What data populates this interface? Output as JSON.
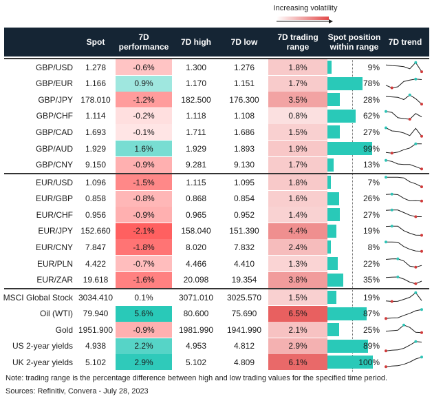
{
  "volatility_label": "Increasing volatility",
  "columns": {
    "spot": "Spot",
    "perf": "7D\nperformance",
    "high": "7D high",
    "low": "7D low",
    "range": "7D trading\nrange",
    "position": "Spot position\nwithin range",
    "trend": "7D trend"
  },
  "colors": {
    "header_bg": "#152534",
    "bar": "#29c9b8",
    "trend_line": "#1a1a1a",
    "trend_start": "#d13b3b",
    "trend_end": "#2ec4b6"
  },
  "chart_data": {
    "type": "table",
    "groups": [
      {
        "rows": [
          {
            "name": "GBP/USD",
            "spot": "1.278",
            "perf": "-0.6%",
            "high": "1.300",
            "low": "1.276",
            "range": "1.8%",
            "position": "9%",
            "pos": 9,
            "perf_value": -0.6,
            "range_value": 1.8
          },
          {
            "name": "GBP/EUR",
            "spot": "1.166",
            "perf": "0.9%",
            "high": "1.170",
            "low": "1.151",
            "range": "1.7%",
            "position": "78%",
            "pos": 78,
            "perf_value": 0.9,
            "range_value": 1.7
          },
          {
            "name": "GBP/JPY",
            "spot": "178.010",
            "perf": "-1.2%",
            "high": "182.500",
            "low": "176.300",
            "range": "3.5%",
            "position": "28%",
            "pos": 28,
            "perf_value": -1.2,
            "range_value": 3.5
          },
          {
            "name": "GBP/CHF",
            "spot": "1.114",
            "perf": "-0.2%",
            "high": "1.118",
            "low": "1.108",
            "range": "0.8%",
            "position": "62%",
            "pos": 62,
            "perf_value": -0.2,
            "range_value": 0.8
          },
          {
            "name": "GBP/CAD",
            "spot": "1.693",
            "perf": "-0.1%",
            "high": "1.711",
            "low": "1.686",
            "range": "1.5%",
            "position": "27%",
            "pos": 27,
            "perf_value": -0.1,
            "range_value": 1.5
          },
          {
            "name": "GBP/AUD",
            "spot": "1.929",
            "perf": "1.6%",
            "high": "1.929",
            "low": "1.893",
            "range": "1.9%",
            "position": "99%",
            "pos": 99,
            "perf_value": 1.6,
            "range_value": 1.9
          },
          {
            "name": "GBP/CNY",
            "spot": "9.150",
            "perf": "-0.9%",
            "high": "9.281",
            "low": "9.130",
            "range": "1.7%",
            "position": "13%",
            "pos": 13,
            "perf_value": -0.9,
            "range_value": 1.7
          }
        ]
      },
      {
        "rows": [
          {
            "name": "EUR/USD",
            "spot": "1.096",
            "perf": "-1.5%",
            "high": "1.115",
            "low": "1.095",
            "range": "1.8%",
            "position": "7%",
            "pos": 7,
            "perf_value": -1.5,
            "range_value": 1.8
          },
          {
            "name": "EUR/GBP",
            "spot": "0.858",
            "perf": "-0.8%",
            "high": "0.868",
            "low": "0.854",
            "range": "1.6%",
            "position": "26%",
            "pos": 26,
            "perf_value": -0.8,
            "range_value": 1.6
          },
          {
            "name": "EUR/CHF",
            "spot": "0.956",
            "perf": "-0.9%",
            "high": "0.965",
            "low": "0.952",
            "range": "1.4%",
            "position": "27%",
            "pos": 27,
            "perf_value": -0.9,
            "range_value": 1.4
          },
          {
            "name": "EUR/JPY",
            "spot": "152.660",
            "perf": "-2.1%",
            "high": "158.040",
            "low": "151.390",
            "range": "4.4%",
            "position": "19%",
            "pos": 19,
            "perf_value": -2.1,
            "range_value": 4.4
          },
          {
            "name": "EUR/CNY",
            "spot": "7.847",
            "perf": "-1.8%",
            "high": "8.020",
            "low": "7.832",
            "range": "2.4%",
            "position": "8%",
            "pos": 8,
            "perf_value": -1.8,
            "range_value": 2.4
          },
          {
            "name": "EUR/PLN",
            "spot": "4.422",
            "perf": "-0.7%",
            "high": "4.466",
            "low": "4.410",
            "range": "1.3%",
            "position": "22%",
            "pos": 22,
            "perf_value": -0.7,
            "range_value": 1.3
          },
          {
            "name": "EUR/ZAR",
            "spot": "19.618",
            "perf": "-1.6%",
            "high": "20.098",
            "low": "19.354",
            "range": "3.8%",
            "position": "35%",
            "pos": 35,
            "perf_value": -1.6,
            "range_value": 3.8
          }
        ]
      },
      {
        "rows": [
          {
            "name": "MSCI Global Stock",
            "spot": "3034.410",
            "perf": "0.1%",
            "high": "3071.010",
            "low": "3025.570",
            "range": "1.5%",
            "position": "19%",
            "pos": 19,
            "perf_value": 0.1,
            "range_value": 1.5
          },
          {
            "name": "Oil (WTI)",
            "spot": "79.940",
            "perf": "5.6%",
            "high": "80.600",
            "low": "75.690",
            "range": "6.5%",
            "position": "87%",
            "pos": 87,
            "perf_value": 5.6,
            "range_value": 6.5
          },
          {
            "name": "Gold",
            "spot": "1951.900",
            "perf": "-0.9%",
            "high": "1981.990",
            "low": "1941.990",
            "range": "2.1%",
            "position": "25%",
            "pos": 25,
            "perf_value": -0.9,
            "range_value": 2.1
          },
          {
            "name": "US 2-year yields",
            "spot": "4.938",
            "perf": "2.2%",
            "high": "4.953",
            "low": "4.812",
            "range": "2.9%",
            "position": "89%",
            "pos": 89,
            "perf_value": 2.2,
            "range_value": 2.9
          },
          {
            "name": "UK 2-year yields",
            "spot": "5.102",
            "perf": "2.9%",
            "high": "5.102",
            "low": "4.809",
            "range": "6.1%",
            "position": "100%",
            "pos": 100,
            "perf_value": 2.9,
            "range_value": 6.1
          }
        ]
      }
    ],
    "trends": [
      [
        0.72,
        0.65,
        0.62,
        0.55,
        0.35,
        0.95,
        0.06
      ],
      [
        0.35,
        0.1,
        0.2,
        0.72,
        0.85,
        0.95,
        0.9
      ],
      [
        0.8,
        0.76,
        0.72,
        0.5,
        0.95,
        0.58,
        0.06
      ],
      [
        0.95,
        0.86,
        0.35,
        0.25,
        0.2,
        0.75,
        0.42
      ],
      [
        0.9,
        0.6,
        0.55,
        0.4,
        0.15,
        0.85,
        0.08
      ],
      [
        0.12,
        0.05,
        0.15,
        0.38,
        0.55,
        0.95,
        0.95
      ],
      [
        0.95,
        0.85,
        0.6,
        0.55,
        0.55,
        0.35,
        0.12
      ],
      [
        0.98,
        0.98,
        0.98,
        0.92,
        0.55,
        0.35,
        0.06
      ],
      [
        0.92,
        0.95,
        0.9,
        0.55,
        0.3,
        0.32,
        0.28
      ],
      [
        0.92,
        0.95,
        0.95,
        0.7,
        0.45,
        0.3,
        0.3
      ],
      [
        0.96,
        0.98,
        0.98,
        0.55,
        0.3,
        0.12,
        0.1
      ],
      [
        0.98,
        0.98,
        0.97,
        0.55,
        0.28,
        0.12,
        0.08
      ],
      [
        0.9,
        0.95,
        0.96,
        0.75,
        0.25,
        0.15,
        0.32
      ],
      [
        0.75,
        0.78,
        0.8,
        0.6,
        0.3,
        0.15,
        0.4
      ],
      [
        0.15,
        0.1,
        0.12,
        0.3,
        0.5,
        0.95,
        0.18
      ],
      [
        0.05,
        0.1,
        0.12,
        0.35,
        0.55,
        0.8,
        0.92
      ],
      [
        0.35,
        0.4,
        0.45,
        0.95,
        0.72,
        0.25,
        0.22
      ],
      [
        0.05,
        0.12,
        0.15,
        0.3,
        0.6,
        0.95,
        0.9
      ],
      [
        0.05,
        0.12,
        0.15,
        0.28,
        0.5,
        0.8,
        0.98
      ]
    ]
  },
  "notes": {
    "note": "Note: trading range is the percentage difference between high and low trading values for the specified time period.",
    "sources": "Sources: Refinitiv, Convera - July 28, 2023"
  }
}
